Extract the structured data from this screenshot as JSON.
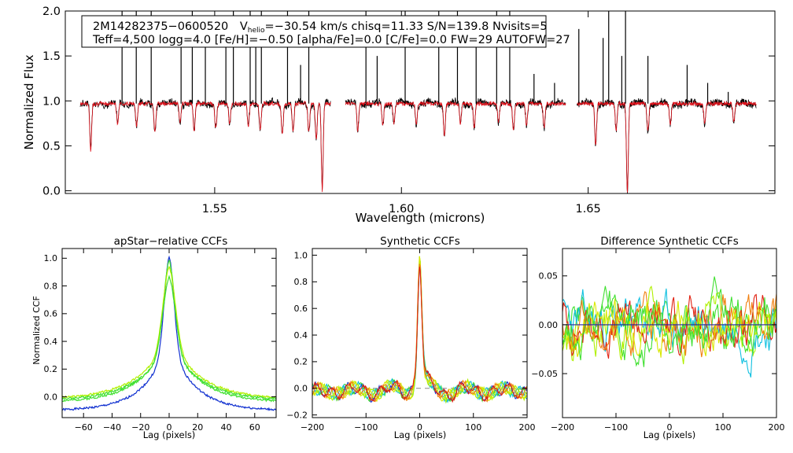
{
  "colors": {
    "observed": "#000000",
    "model": "#e0101a",
    "ccf_blue": "#1030d0",
    "ccf_green": "#40e030",
    "ccf_lime": "#b0f000",
    "ccf_cyan": "#10c0e0",
    "ccf_red": "#e02010",
    "ccf_orange": "#f08010",
    "ccf_yellow": "#d8e800",
    "zero_line": "#2020a0",
    "dashed_line": "#888888"
  },
  "header": {
    "line1_star": "2M14282375−0600520",
    "line1_v": "V",
    "line1_sub": "helio",
    "line1_rest": "=−30.54 km/s  chisq=11.33  S/N=139.8  Nvisits=5",
    "line2": "Teff=4,500 logg=4.0 [Fe/H]=−0.50 [alpha/Fe]=0.0 [C/Fe]=0.0 FW=29 AUTOFW=27"
  },
  "chart_data": [
    {
      "id": "spectrum",
      "type": "line",
      "title": "",
      "xlabel": "Wavelength (microns)",
      "ylabel": "Normalized Flux",
      "xlim": [
        1.51,
        1.7
      ],
      "ylim": [
        -0.03,
        2.0
      ],
      "xticks": [
        1.55,
        1.6,
        1.65
      ],
      "xtick_labels": [
        "1.55",
        "1.60",
        "1.65"
      ],
      "yticks": [
        0.0,
        0.5,
        1.0,
        1.5,
        2.0
      ],
      "ytick_labels": [
        "0.0",
        "0.5",
        "1.0",
        "1.5",
        "2.0"
      ],
      "chips": [
        [
          1.514,
          1.581
        ],
        [
          1.585,
          1.644
        ],
        [
          1.647,
          1.695
        ]
      ],
      "continuum": 0.97,
      "absorption_lines": [
        {
          "x": 1.5168,
          "depth": 0.52
        },
        {
          "x": 1.524,
          "depth": 0.22
        },
        {
          "x": 1.5291,
          "depth": 0.25
        },
        {
          "x": 1.534,
          "depth": 0.3
        },
        {
          "x": 1.5407,
          "depth": 0.2
        },
        {
          "x": 1.5445,
          "depth": 0.32
        },
        {
          "x": 1.5503,
          "depth": 0.28
        },
        {
          "x": 1.554,
          "depth": 0.22
        },
        {
          "x": 1.559,
          "depth": 0.27
        },
        {
          "x": 1.5622,
          "depth": 0.3
        },
        {
          "x": 1.5681,
          "depth": 0.35
        },
        {
          "x": 1.571,
          "depth": 0.3
        },
        {
          "x": 1.5752,
          "depth": 0.32
        },
        {
          "x": 1.5772,
          "depth": 0.4
        },
        {
          "x": 1.5788,
          "depth": 0.97
        },
        {
          "x": 1.5883,
          "depth": 0.3
        },
        {
          "x": 1.595,
          "depth": 0.25
        },
        {
          "x": 1.598,
          "depth": 0.22
        },
        {
          "x": 1.604,
          "depth": 0.22
        },
        {
          "x": 1.6115,
          "depth": 0.35
        },
        {
          "x": 1.6158,
          "depth": 0.22
        },
        {
          "x": 1.6195,
          "depth": 0.27
        },
        {
          "x": 1.626,
          "depth": 0.2
        },
        {
          "x": 1.63,
          "depth": 0.3
        },
        {
          "x": 1.6335,
          "depth": 0.25
        },
        {
          "x": 1.6382,
          "depth": 0.27
        },
        {
          "x": 1.652,
          "depth": 0.45
        },
        {
          "x": 1.6575,
          "depth": 0.3
        },
        {
          "x": 1.6605,
          "depth": 0.97
        },
        {
          "x": 1.666,
          "depth": 0.3
        },
        {
          "x": 1.672,
          "depth": 0.25
        },
        {
          "x": 1.6812,
          "depth": 0.22
        },
        {
          "x": 1.689,
          "depth": 0.2
        }
      ],
      "emission_spikes": [
        {
          "x": 1.5252,
          "peak": 2.0
        },
        {
          "x": 1.529,
          "peak": 2.0
        },
        {
          "x": 1.533,
          "peak": 2.0
        },
        {
          "x": 1.541,
          "peak": 1.6
        },
        {
          "x": 1.544,
          "peak": 2.0
        },
        {
          "x": 1.5475,
          "peak": 1.8
        },
        {
          "x": 1.553,
          "peak": 1.7
        },
        {
          "x": 1.555,
          "peak": 2.0
        },
        {
          "x": 1.5595,
          "peak": 2.0
        },
        {
          "x": 1.561,
          "peak": 1.9
        },
        {
          "x": 1.5625,
          "peak": 2.0
        },
        {
          "x": 1.5695,
          "peak": 2.0
        },
        {
          "x": 1.573,
          "peak": 1.4
        },
        {
          "x": 1.5752,
          "peak": 2.0
        },
        {
          "x": 1.5905,
          "peak": 2.0
        },
        {
          "x": 1.5935,
          "peak": 1.5
        },
        {
          "x": 1.601,
          "peak": 2.0
        },
        {
          "x": 1.61,
          "peak": 2.0
        },
        {
          "x": 1.615,
          "peak": 2.0
        },
        {
          "x": 1.62,
          "peak": 1.6
        },
        {
          "x": 1.6255,
          "peak": 2.0
        },
        {
          "x": 1.629,
          "peak": 2.0
        },
        {
          "x": 1.6355,
          "peak": 1.3
        },
        {
          "x": 1.641,
          "peak": 1.2
        },
        {
          "x": 1.6475,
          "peak": 1.8
        },
        {
          "x": 1.654,
          "peak": 1.7
        },
        {
          "x": 1.6555,
          "peak": 2.0
        },
        {
          "x": 1.659,
          "peak": 1.5
        },
        {
          "x": 1.66,
          "peak": 2.0
        },
        {
          "x": 1.666,
          "peak": 1.5
        },
        {
          "x": 1.6765,
          "peak": 1.4
        },
        {
          "x": 1.682,
          "peak": 1.2
        },
        {
          "x": 1.6875,
          "peak": 1.1
        }
      ]
    },
    {
      "id": "apstar_ccf",
      "type": "line",
      "title": "apStar−relative CCFs",
      "xlabel": "Lag (pixels)",
      "ylabel": "Normalized CCF",
      "xlim": [
        -75,
        75
      ],
      "ylim": [
        -0.15,
        1.07
      ],
      "xticks": [
        -60,
        -40,
        -20,
        0,
        20,
        40,
        60
      ],
      "xtick_labels": [
        "−60",
        "−40",
        "−20",
        "0",
        "20",
        "40",
        "60"
      ],
      "yticks": [
        0.0,
        0.2,
        0.4,
        0.6,
        0.8,
        1.0
      ],
      "ytick_labels": [
        "0.0",
        "0.2",
        "0.4",
        "0.6",
        "0.8",
        "1.0"
      ],
      "series": [
        {
          "color": "ccf_blue",
          "peak": 1.0,
          "width": 7,
          "wings": 0.3,
          "offset": -0.1,
          "seed": 1
        },
        {
          "color": "ccf_green",
          "peak": 0.97,
          "width": 8,
          "wings": 0.35,
          "offset": -0.04,
          "seed": 2
        },
        {
          "color": "ccf_lime",
          "peak": 0.92,
          "width": 9,
          "wings": 0.38,
          "offset": -0.02,
          "seed": 3
        },
        {
          "color": "ccf_green",
          "peak": 0.85,
          "width": 9,
          "wings": 0.36,
          "offset": -0.03,
          "seed": 4
        }
      ]
    },
    {
      "id": "synthetic_ccf",
      "type": "line",
      "title": "Synthetic CCFs",
      "xlabel": "Lag (pixels)",
      "ylabel": "",
      "xlim": [
        -200,
        200
      ],
      "ylim": [
        -0.22,
        1.05
      ],
      "xticks": [
        -200,
        -100,
        0,
        100,
        200
      ],
      "xtick_labels": [
        "−200",
        "−100",
        "0",
        "100",
        "200"
      ],
      "yticks": [
        -0.2,
        0.0,
        0.2,
        0.4,
        0.6,
        0.8,
        1.0
      ],
      "ytick_labels": [
        "−0.2",
        "0.0",
        "0.2",
        "0.4",
        "0.6",
        "0.8",
        "1.0"
      ],
      "reference_line": 0.0,
      "series": [
        {
          "color": "ccf_blue",
          "seed": 11
        },
        {
          "color": "ccf_green",
          "seed": 12
        },
        {
          "color": "ccf_cyan",
          "seed": 13
        },
        {
          "color": "ccf_lime",
          "seed": 14
        },
        {
          "color": "ccf_yellow",
          "seed": 15
        },
        {
          "color": "ccf_orange",
          "seed": 16
        },
        {
          "color": "ccf_red",
          "seed": 17
        }
      ]
    },
    {
      "id": "difference_ccf",
      "type": "line",
      "title": "Difference Synthetic CCFs",
      "xlabel": "Lag (pixels)",
      "ylabel": "",
      "xlim": [
        -200,
        200
      ],
      "ylim": [
        -0.095,
        0.078
      ],
      "xticks": [
        -200,
        -100,
        0,
        100,
        200
      ],
      "xtick_labels": [
        "−200",
        "−100",
        "0",
        "100",
        "200"
      ],
      "yticks": [
        -0.05,
        0.0,
        0.05
      ],
      "ytick_labels": [
        "−0.05",
        "0.00",
        "0.05"
      ],
      "reference_line": 0.0,
      "series": [
        {
          "color": "ccf_green",
          "seed": 21
        },
        {
          "color": "ccf_lime",
          "seed": 22
        },
        {
          "color": "ccf_cyan",
          "seed": 23
        },
        {
          "color": "ccf_red",
          "seed": 24
        },
        {
          "color": "ccf_orange",
          "seed": 25
        },
        {
          "color": "ccf_yellow",
          "seed": 26
        },
        {
          "color": "ccf_green",
          "seed": 27
        }
      ]
    }
  ]
}
